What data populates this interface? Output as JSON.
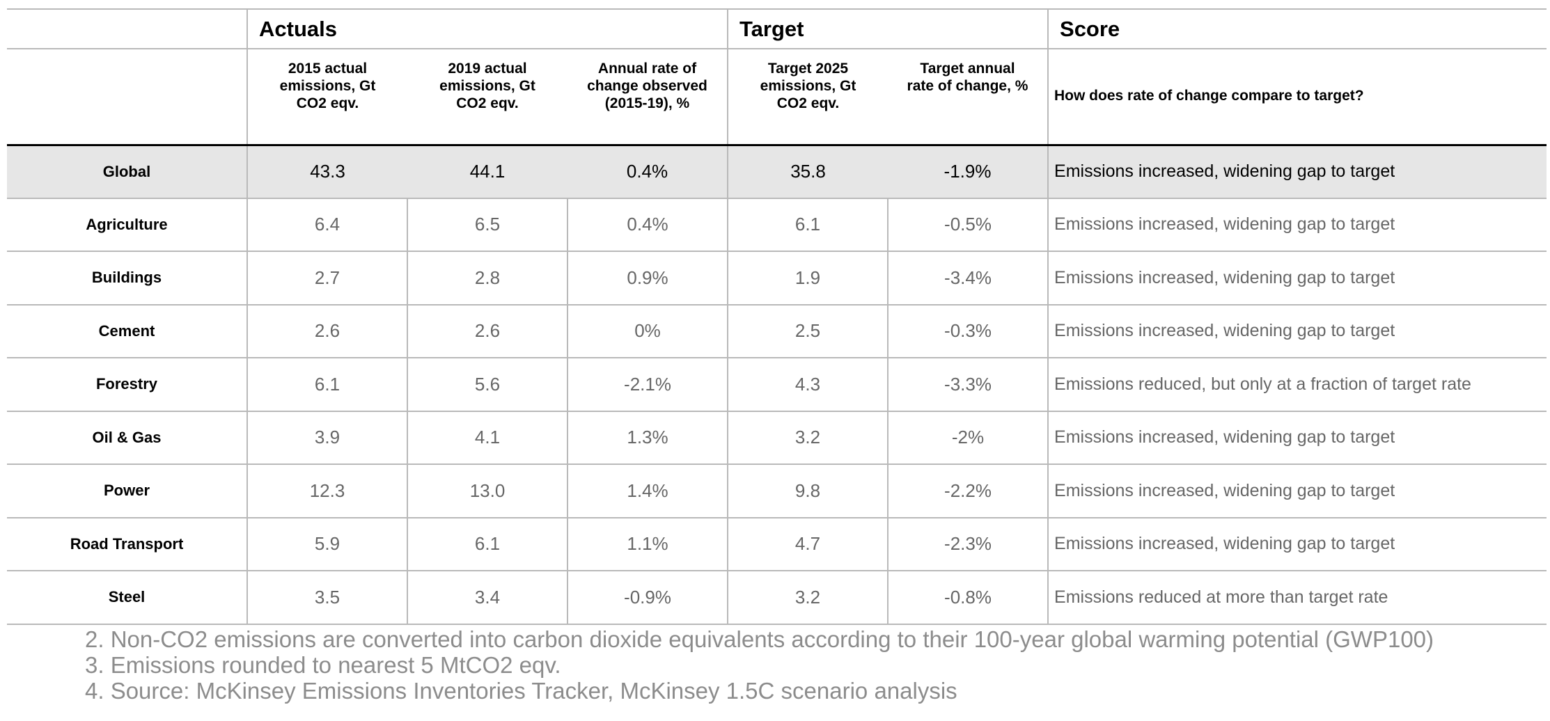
{
  "groups": {
    "actuals": "Actuals",
    "target": "Target",
    "score": "Score"
  },
  "columns": {
    "actual_2015": "2015 actual emissions, Gt CO2 eqv.",
    "actual_2019": "2019 actual emissions, Gt CO2 eqv.",
    "annual_rate_observed": "Annual rate of change observed (2015-19), %",
    "target_2025": "Target 2025 emissions, Gt CO2 eqv.",
    "target_annual_rate": "Target annual rate of change, %",
    "score_question": "How does rate of change compare to target?"
  },
  "rows": [
    {
      "sector": "Global",
      "a2015": "43.3",
      "a2019": "44.1",
      "obs": "0.4%",
      "t2025": "35.8",
      "trate": "-1.9%",
      "score": "Emissions increased, widening gap to target"
    },
    {
      "sector": "Agriculture",
      "a2015": "6.4",
      "a2019": "6.5",
      "obs": "0.4%",
      "t2025": "6.1",
      "trate": "-0.5%",
      "score": "Emissions increased, widening gap to target"
    },
    {
      "sector": "Buildings",
      "a2015": "2.7",
      "a2019": "2.8",
      "obs": "0.9%",
      "t2025": "1.9",
      "trate": "-3.4%",
      "score": "Emissions increased, widening gap to target"
    },
    {
      "sector": "Cement",
      "a2015": "2.6",
      "a2019": "2.6",
      "obs": "0%",
      "t2025": "2.5",
      "trate": "-0.3%",
      "score": "Emissions increased, widening gap to target"
    },
    {
      "sector": "Forestry",
      "a2015": "6.1",
      "a2019": "5.6",
      "obs": "-2.1%",
      "t2025": "4.3",
      "trate": "-3.3%",
      "score": "Emissions reduced, but only at a fraction of target rate"
    },
    {
      "sector": "Oil & Gas",
      "a2015": "3.9",
      "a2019": "4.1",
      "obs": "1.3%",
      "t2025": "3.2",
      "trate": "-2%",
      "score": "Emissions increased, widening gap to target"
    },
    {
      "sector": "Power",
      "a2015": "12.3",
      "a2019": "13.0",
      "obs": "1.4%",
      "t2025": "9.8",
      "trate": "-2.2%",
      "score": "Emissions increased, widening gap to target"
    },
    {
      "sector": "Road Transport",
      "a2015": "5.9",
      "a2019": "6.1",
      "obs": "1.1%",
      "t2025": "4.7",
      "trate": "-2.3%",
      "score": "Emissions increased, widening gap to target"
    },
    {
      "sector": "Steel",
      "a2015": "3.5",
      "a2019": "3.4",
      "obs": "-0.9%",
      "t2025": "3.2",
      "trate": "-0.8%",
      "score": "Emissions reduced at more than target rate"
    }
  ],
  "footnotes": [
    "2. Non-CO2 emissions are converted into carbon dioxide equivalents according to their 100-year global warming potential (GWP100)",
    "3. Emissions rounded to nearest 5 MtCO2 eqv.",
    "4. Source: McKinsey Emissions Inventories Tracker, McKinsey 1.5C scenario analysis"
  ]
}
